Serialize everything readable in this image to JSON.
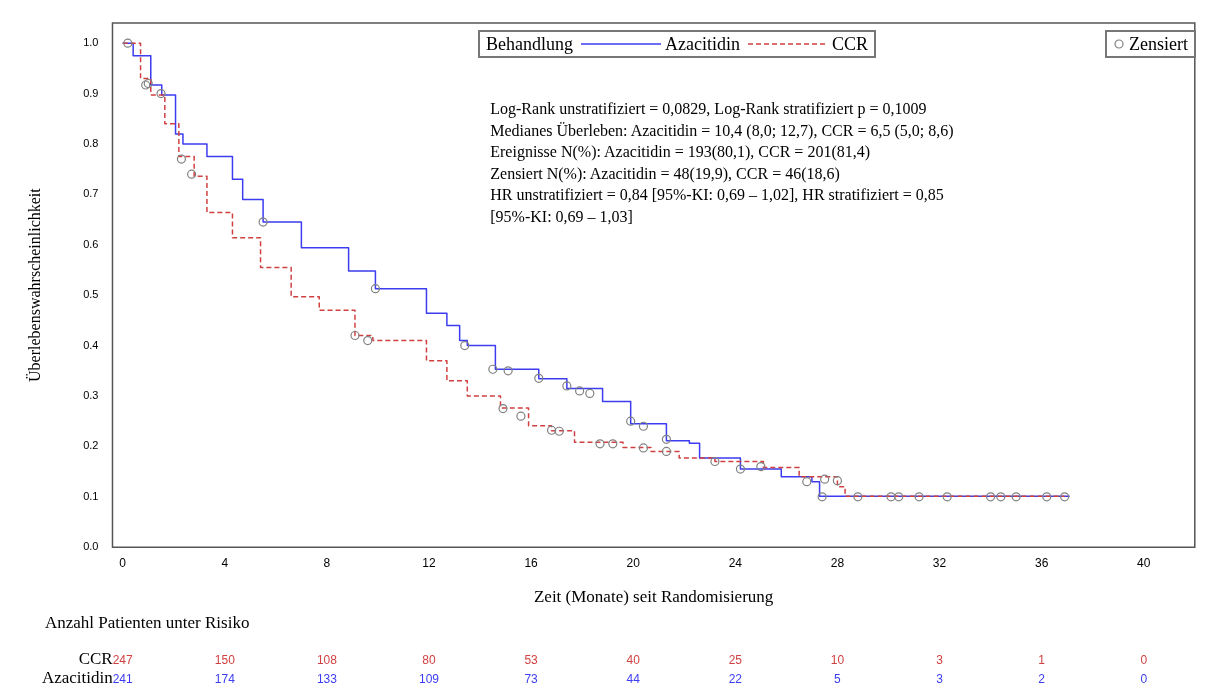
{
  "chart_data": {
    "type": "step",
    "xlabel": "Zeit (Monate) seit Randomisierung",
    "ylabel": "Überlebenswahrscheinlichkeit",
    "legend_title": "Behandlung",
    "legend": "top",
    "xlim": [
      -0.4,
      42
    ],
    "xticks": [
      0,
      4,
      8,
      12,
      16,
      20,
      24,
      28,
      32,
      36,
      40
    ],
    "ylim": [
      0,
      1.04
    ],
    "yticks": [
      {
        "value": 0,
        "label": "0.0"
      },
      0.1,
      0.2,
      0.3,
      0.4,
      0.5,
      0.6,
      0.7,
      0.8,
      0.9,
      {
        "value": 1,
        "label": "1.0"
      }
    ],
    "grid": false,
    "series": [
      {
        "name": "Azacitidin",
        "color": "#3c3cf0",
        "line_style": "solid",
        "marker": "none",
        "x": [
          0,
          0.41,
          1.1,
          1.53,
          2.07,
          2.36,
          3.3,
          4.3,
          4.7,
          5.5,
          7.0,
          8.85,
          9.9,
          11.9,
          12.7,
          13.2,
          13.5,
          14.6,
          16.3,
          17.4,
          18.8,
          19.9,
          21.3,
          22.2,
          22.6,
          24.2,
          25.8,
          27.0,
          27.3,
          37.1
        ],
        "values": [
          1.0,
          0.975,
          0.917,
          0.897,
          0.82,
          0.8,
          0.775,
          0.73,
          0.69,
          0.645,
          0.594,
          0.548,
          0.513,
          0.464,
          0.44,
          0.41,
          0.4,
          0.353,
          0.334,
          0.315,
          0.289,
          0.245,
          0.211,
          0.206,
          0.177,
          0.155,
          0.14,
          0.13,
          0.101,
          0.101
        ]
      },
      {
        "name": "CCR",
        "color": "#d04040",
        "line_style": "dashed",
        "marker": "none",
        "x": [
          0,
          0.7,
          1.1,
          1.65,
          2.2,
          2.8,
          3.3,
          4.3,
          5.4,
          6.6,
          7.7,
          9.1,
          9.8,
          11.9,
          12.7,
          13.5,
          14.1,
          14.8,
          15.9,
          16.8,
          17.7,
          19.6,
          20.7,
          21.8,
          23.2,
          25.1,
          26.5,
          28.0,
          28.3,
          36.9
        ],
        "values": [
          1.0,
          0.93,
          0.897,
          0.84,
          0.775,
          0.736,
          0.664,
          0.614,
          0.555,
          0.497,
          0.47,
          0.42,
          0.41,
          0.37,
          0.33,
          0.3,
          0.3,
          0.276,
          0.241,
          0.231,
          0.208,
          0.198,
          0.19,
          0.177,
          0.17,
          0.158,
          0.14,
          0.12,
          0.101,
          0.101
        ]
      },
      {
        "name": "Zensiert",
        "type": "scatter",
        "color": "#808080",
        "marker": "circle",
        "x": [
          0.2,
          1.0,
          1.5,
          0.9,
          2.3,
          2.7,
          5.5,
          9.9,
          9.1,
          9.6,
          13.4,
          14.5,
          15.1,
          16.3,
          17.4,
          17.9,
          18.3,
          19.9,
          20.4,
          21.3,
          24.2,
          26.8,
          27.4,
          14.9,
          15.6,
          16.8,
          17.1,
          18.7,
          19.2,
          20.4,
          21.3,
          23.2,
          25.0,
          27.5,
          28.0,
          28.8,
          30.1,
          30.4,
          31.2,
          32.3,
          34.0,
          34.4,
          35.0,
          36.2,
          36.9
        ],
        "values": [
          1.0,
          0.92,
          0.9,
          0.917,
          0.77,
          0.74,
          0.645,
          0.513,
          0.42,
          0.41,
          0.4,
          0.353,
          0.35,
          0.335,
          0.32,
          0.31,
          0.305,
          0.25,
          0.24,
          0.214,
          0.155,
          0.13,
          0.1,
          0.275,
          0.26,
          0.232,
          0.23,
          0.205,
          0.205,
          0.197,
          0.19,
          0.17,
          0.16,
          0.135,
          0.132,
          0.1,
          0.1,
          0.1,
          0.1,
          0.1,
          0.1,
          0.1,
          0.1,
          0.1,
          0.1
        ]
      }
    ],
    "annotations": [
      "Log-Rank unstratifiziert = 0,0829, Log-Rank stratifiziert p = 0,1009",
      "Medianes Überleben: Azacitidin = 10,4 (8,0; 12,7), CCR = 6,5 (5,0; 8,6)",
      "Ereignisse N(%): Azacitidin = 193(80,1), CCR = 201(81,4)",
      "Zensiert N(%): Azacitidin = 48(19,9), CCR = 46(18,6)",
      "HR unstratifiziert = 0,84 [95%-KI: 0,69 – 1,02], HR stratifiziert = 0,85",
      "[95%-KI: 0,69 – 1,03]",
      "Anzahl Patienten unter Risiko",
      "CCR",
      "247",
      "150",
      "108",
      "80",
      "53",
      "40",
      "25",
      "10",
      "3",
      "1",
      "0",
      "Azacitidin",
      "241",
      "174",
      "133",
      "109",
      "73",
      "44",
      "22",
      "5",
      "3",
      "2",
      "0"
    ]
  }
}
